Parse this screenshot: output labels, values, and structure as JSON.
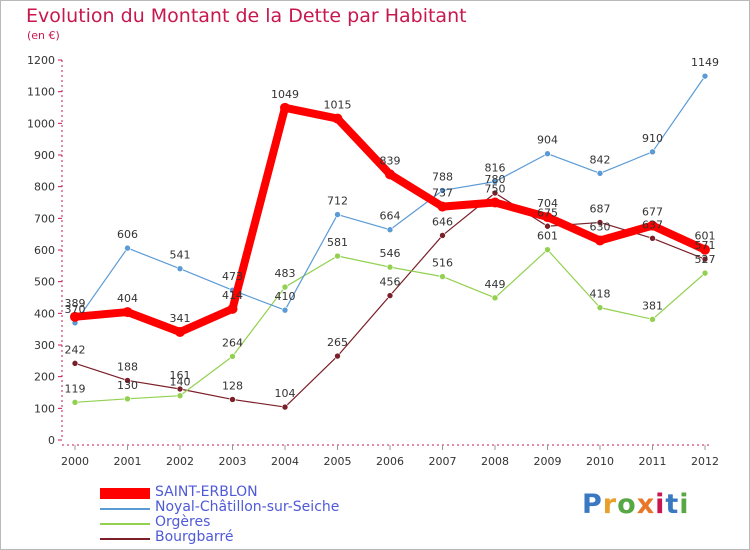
{
  "title": "Evolution du Montant de la Dette par Habitant",
  "unit": "(en €)",
  "logo": "Proxiti",
  "chart_data": {
    "type": "line",
    "title": "Evolution du Montant de la Dette par Habitant",
    "ylabel": "(en €)",
    "xlabel": "",
    "categories": [
      "2000",
      "2001",
      "2002",
      "2003",
      "2004",
      "2005",
      "2006",
      "2007",
      "2008",
      "2009",
      "2010",
      "2011",
      "2012"
    ],
    "ylim": [
      0,
      1200
    ],
    "yticks": [
      0,
      100,
      200,
      300,
      400,
      500,
      600,
      700,
      800,
      900,
      1000,
      1100,
      1200
    ],
    "grid": false,
    "legend_position": "bottom-left",
    "series": [
      {
        "name": "SAINT-ERBLON",
        "color": "#ff0000",
        "values": [
          389,
          404,
          341,
          414,
          1049,
          1015,
          839,
          737,
          750,
          704,
          630,
          677,
          601
        ]
      },
      {
        "name": "Noyal-Châtillon-sur-Seiche",
        "color": "#5b9bd5",
        "values": [
          370,
          606,
          541,
          473,
          410,
          712,
          664,
          788,
          816,
          904,
          842,
          910,
          1149
        ]
      },
      {
        "name": "Orgères",
        "color": "#92d050",
        "values": [
          119,
          130,
          140,
          264,
          483,
          581,
          546,
          516,
          449,
          601,
          418,
          381,
          527
        ]
      },
      {
        "name": "Bourgbarré",
        "color": "#7b1f28",
        "values": [
          242,
          188,
          161,
          128,
          104,
          265,
          456,
          646,
          780,
          675,
          687,
          637,
          571
        ]
      }
    ]
  }
}
